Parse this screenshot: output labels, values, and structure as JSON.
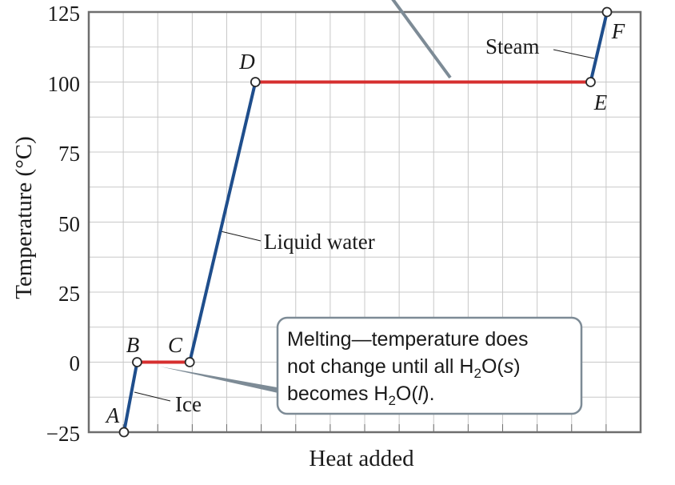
{
  "chart_data": {
    "type": "line",
    "ylabel": "Temperature (°C)",
    "xlabel": "Heat added",
    "yticks": [
      "125",
      "100",
      "75",
      "50",
      "25",
      "0",
      "−25"
    ],
    "ylim": [
      -25,
      125
    ],
    "grid": true,
    "series": [
      {
        "segment": "A-B",
        "phase": "heating",
        "x": [
          0.0,
          0.2
        ],
        "y": [
          -25,
          0
        ]
      },
      {
        "segment": "B-C",
        "phase": "transition",
        "x": [
          0.2,
          1.0
        ],
        "y": [
          0,
          0
        ]
      },
      {
        "segment": "C-D",
        "phase": "heating",
        "x": [
          1.0,
          2.0
        ],
        "y": [
          0,
          100
        ]
      },
      {
        "segment": "D-E",
        "phase": "transition",
        "x": [
          2.0,
          7.1
        ],
        "y": [
          100,
          100
        ]
      },
      {
        "segment": "E-F",
        "phase": "heating",
        "x": [
          7.1,
          7.35
        ],
        "y": [
          100,
          125
        ]
      }
    ],
    "points": [
      {
        "label": "A",
        "x": 0.0,
        "y": -25
      },
      {
        "label": "B",
        "x": 0.2,
        "y": 0
      },
      {
        "label": "C",
        "x": 1.0,
        "y": 0
      },
      {
        "label": "D",
        "x": 2.0,
        "y": 100
      },
      {
        "label": "E",
        "x": 7.1,
        "y": 100
      },
      {
        "label": "F",
        "x": 7.35,
        "y": 125
      }
    ],
    "region_labels": [
      "Ice",
      "Liquid water",
      "Steam"
    ],
    "callout": {
      "line1": "Melting—temperature does",
      "line2_prefix": "not change until all H",
      "line2_sub": "2",
      "line2_suffix_a": "O(",
      "line2_italic": "s",
      "line2_suffix_b": ")",
      "line3_prefix": "becomes H",
      "line3_sub": "2",
      "line3_suffix_a": "O(",
      "line3_italic": "l",
      "line3_suffix_b": ")."
    },
    "colors": {
      "heating": "#1f4e8c",
      "transition": "#d62f2f",
      "grid": "#c8c8c8",
      "frame": "#6e6e6e",
      "callout_border": "#7d8b96",
      "leader": "#7d8b96"
    }
  }
}
